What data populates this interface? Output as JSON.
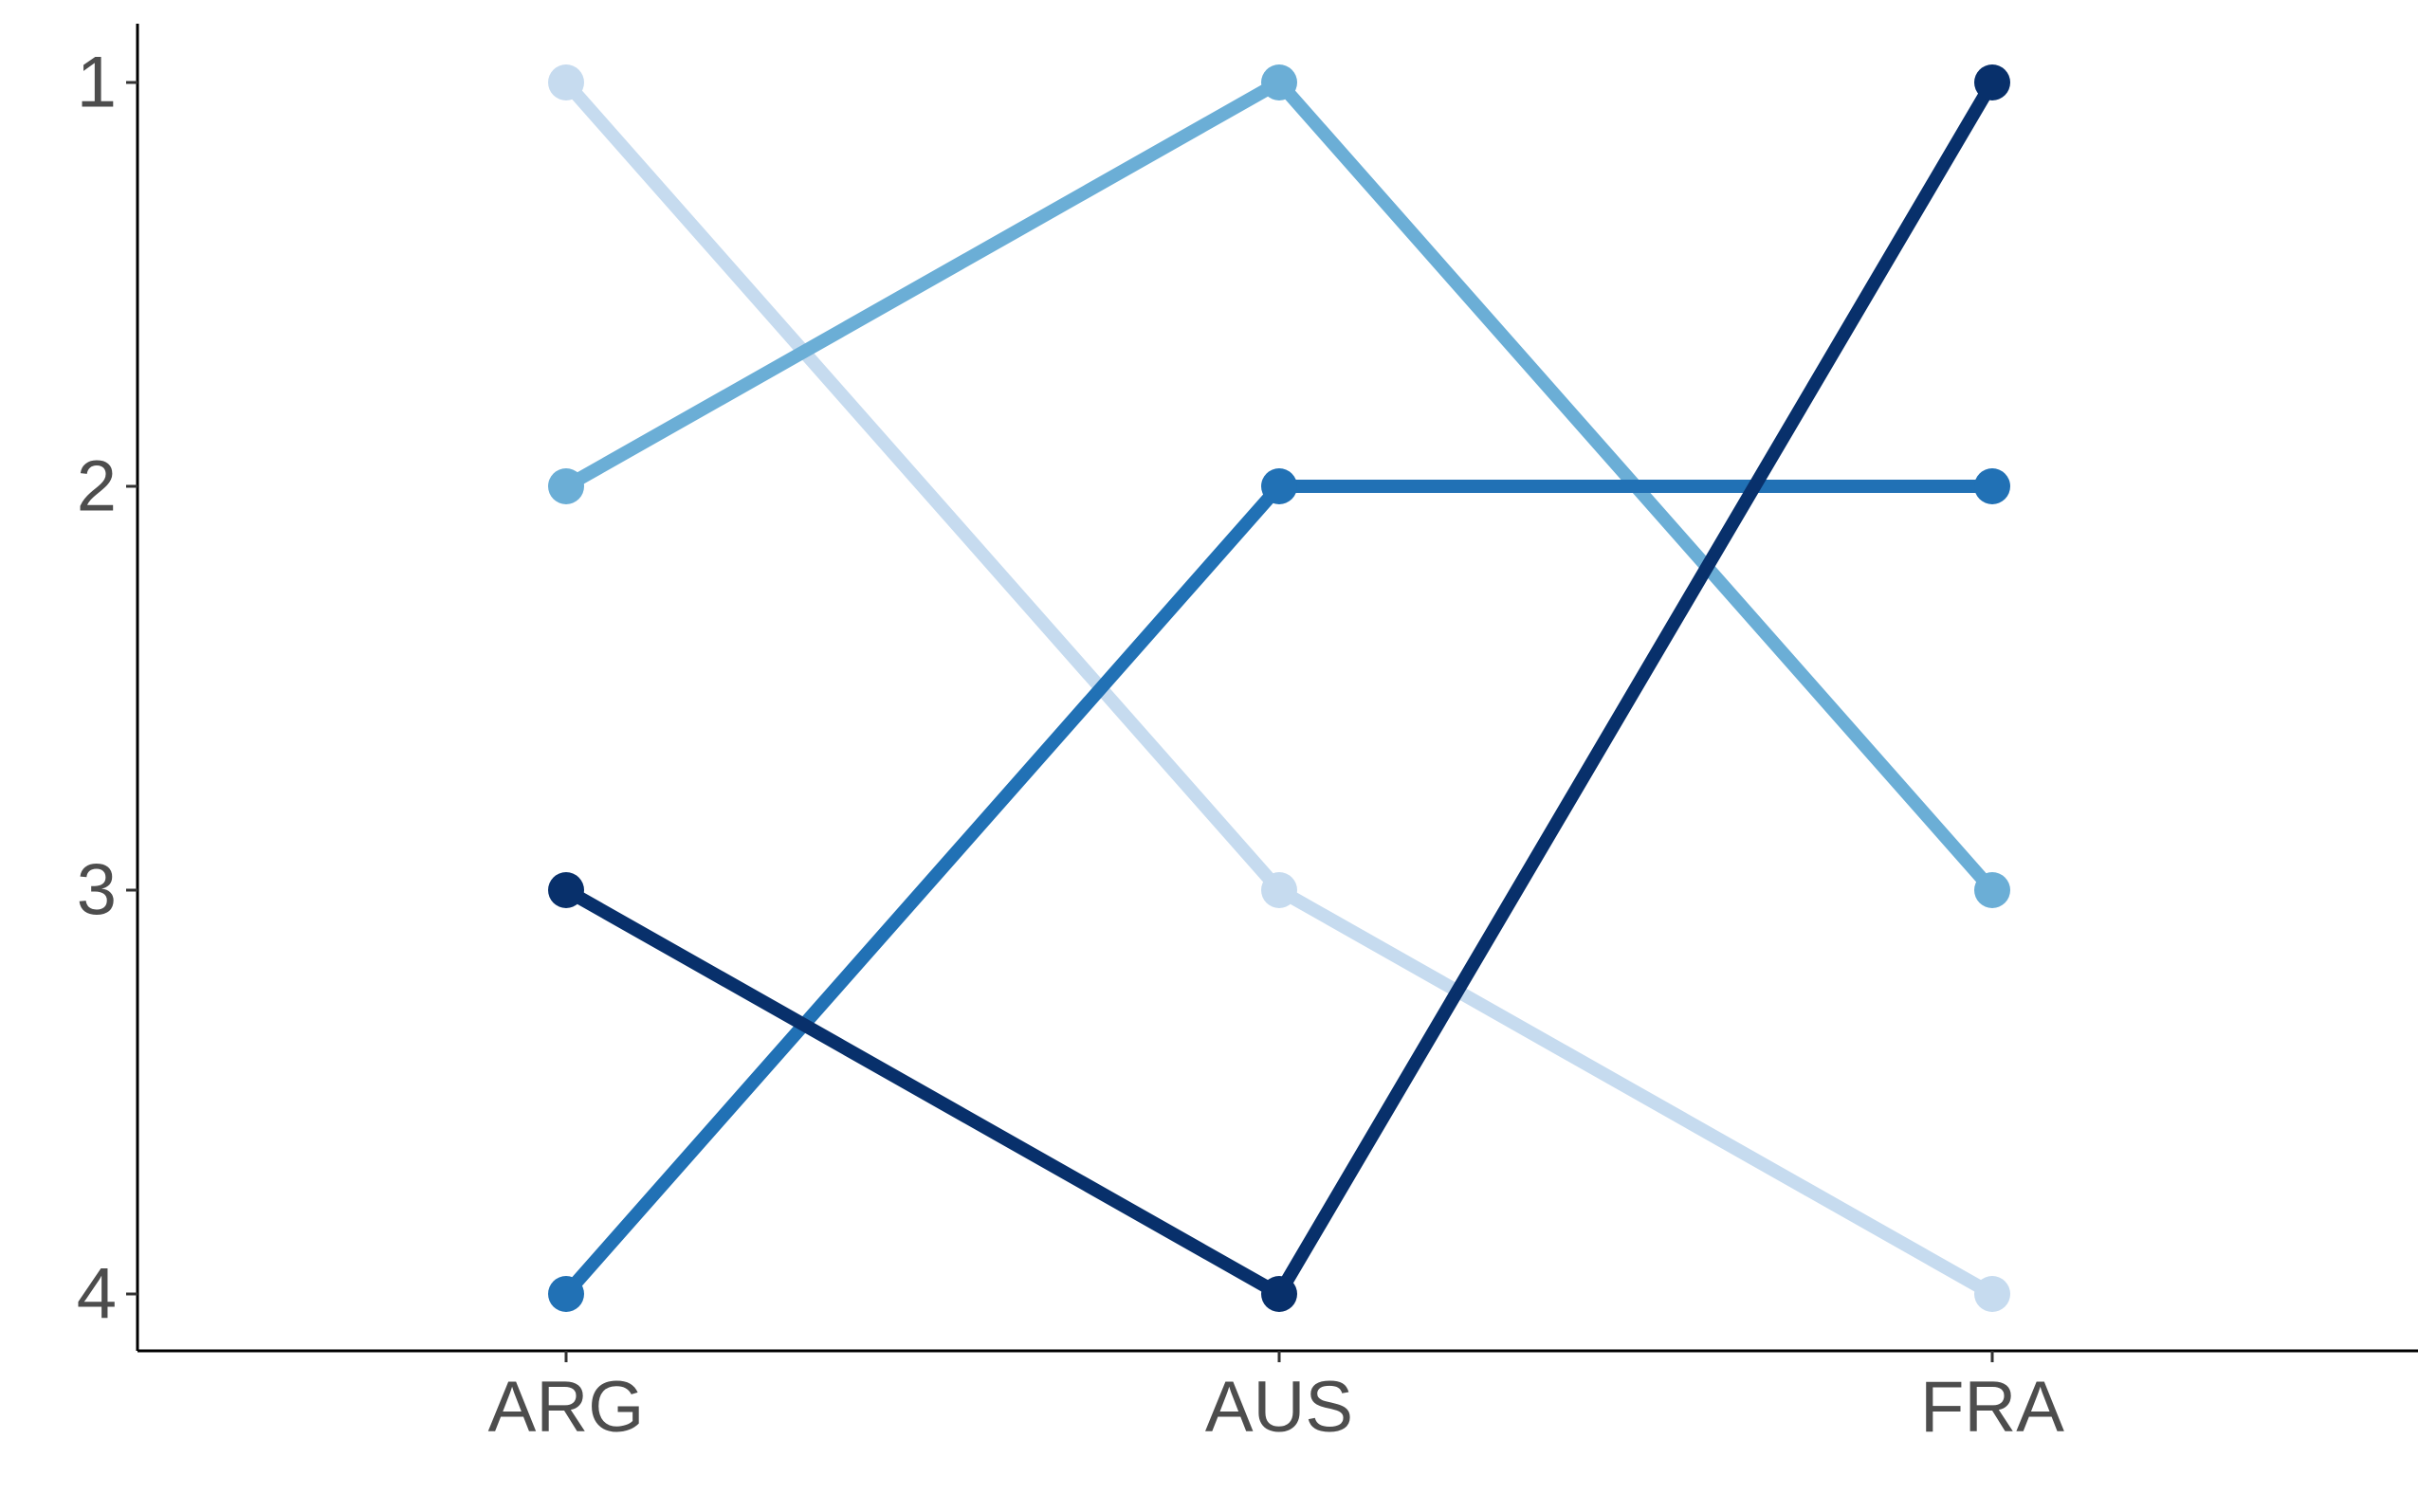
{
  "chart_data": {
    "type": "line",
    "title": "",
    "xlabel": "",
    "ylabel": "",
    "categories": [
      "ARG",
      "AUS",
      "FRA"
    ],
    "y_ticks": [
      "1",
      "2",
      "3",
      "4"
    ],
    "ylim": [
      1,
      4
    ],
    "y_reversed": true,
    "grid": false,
    "legend": "none",
    "series": [
      {
        "color": "#C6DBEF",
        "values": [
          1,
          3,
          4
        ]
      },
      {
        "color": "#6BAED6",
        "values": [
          2,
          1,
          3
        ]
      },
      {
        "color": "#2171B5",
        "values": [
          4,
          2,
          2
        ]
      },
      {
        "color": "#08306B",
        "values": [
          3,
          4,
          1
        ]
      }
    ]
  }
}
